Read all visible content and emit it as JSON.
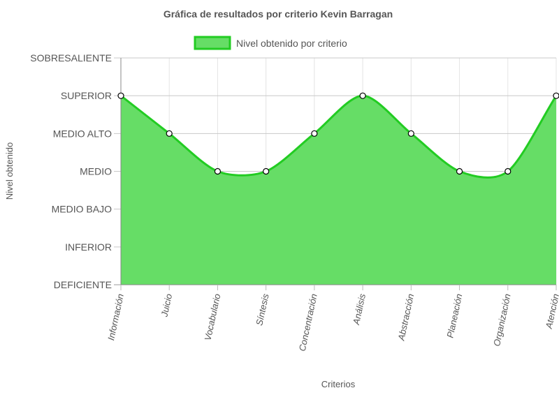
{
  "chart_data": {
    "type": "area",
    "title": "Gráfica de resultados por criterio Kevin Barragan",
    "xlabel": "Criterios",
    "ylabel": "Nivel obtenido",
    "levels": [
      "DEFICIENTE",
      "INFERIOR",
      "MEDIO BAJO",
      "MEDIO",
      "MEDIO ALTO",
      "SUPERIOR",
      "SOBRESALIENTE"
    ],
    "categories": [
      "Información",
      "Juicio",
      "Vocabulario",
      "Síntesis",
      "Concentración",
      "Análisis",
      "Abstracción",
      "Planeación",
      "Organización",
      "Atención"
    ],
    "ylim": [
      0,
      6
    ],
    "grid": true,
    "legend_position": "top",
    "series": [
      {
        "name": "Nivel obtenido por criterio",
        "values": [
          5,
          4,
          3,
          3,
          4,
          5,
          4,
          3,
          3,
          5
        ],
        "value_labels": [
          "SUPERIOR",
          "MEDIO ALTO",
          "MEDIO",
          "MEDIO",
          "MEDIO ALTO",
          "SUPERIOR",
          "MEDIO ALTO",
          "MEDIO",
          "MEDIO",
          "SUPERIOR"
        ],
        "fill_color": "#66dd66",
        "line_color": "#22cc22"
      }
    ]
  }
}
